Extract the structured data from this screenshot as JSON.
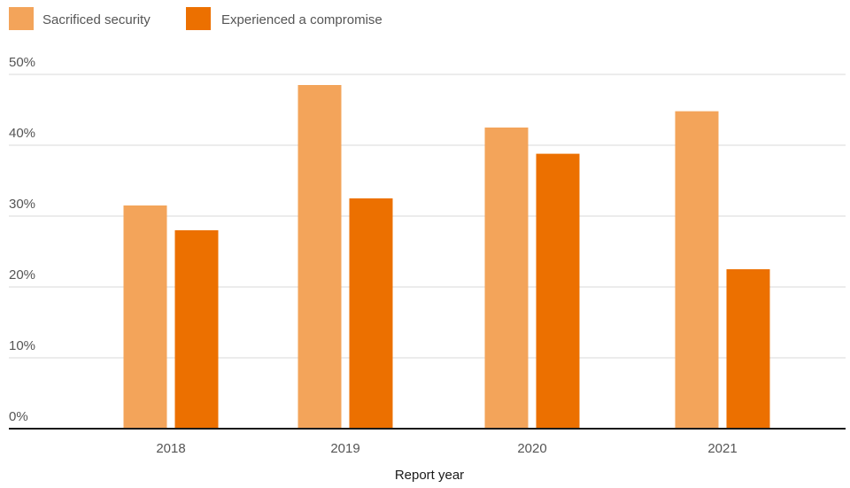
{
  "chart_data": {
    "type": "bar",
    "title": "",
    "xlabel": "Report year",
    "ylabel": "",
    "categories": [
      "2018",
      "2019",
      "2020",
      "2021"
    ],
    "series": [
      {
        "name": "Sacrificed security",
        "color": "#F3A45A",
        "values": [
          31.5,
          48.5,
          42.5,
          44.8
        ]
      },
      {
        "name": "Experienced a compromise",
        "color": "#EC7000",
        "values": [
          28.0,
          32.5,
          38.8,
          22.5
        ]
      }
    ],
    "ylim": [
      0,
      50
    ],
    "yticks": [
      "0%",
      "10%",
      "20%",
      "30%",
      "40%",
      "50%"
    ],
    "grid": true,
    "legend_position": "top-left"
  }
}
